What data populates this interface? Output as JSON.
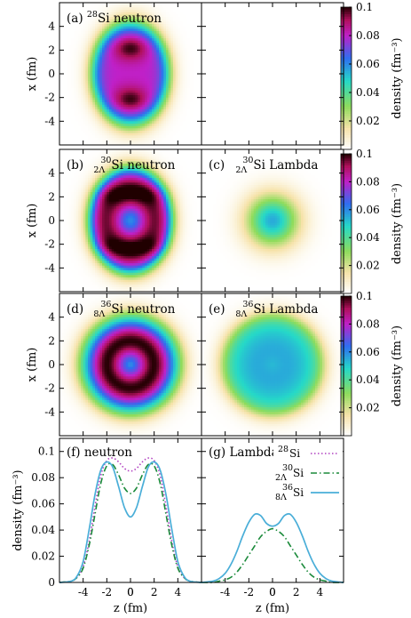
{
  "colorscale": {
    "stops": [
      [
        0.0,
        "#ffffff"
      ],
      [
        0.15,
        "#f6e2a8"
      ],
      [
        0.3,
        "#8fdc5c"
      ],
      [
        0.48,
        "#25d9c8"
      ],
      [
        0.64,
        "#2f6ef0"
      ],
      [
        0.8,
        "#c020c8"
      ],
      [
        0.91,
        "#b0105c"
      ],
      [
        1.0,
        "#200000"
      ]
    ],
    "ticks": [
      "0.02",
      "0.04",
      "0.06",
      "0.08",
      "0.1"
    ],
    "label": "density (fm⁻³)",
    "range": [
      0,
      0.1
    ]
  },
  "axes": {
    "x_label": "x (fm)",
    "z_label": "z (fm)",
    "density_label": "density (fm⁻³)",
    "map_ticks": [
      "4",
      "2",
      "0",
      "-2",
      "-4"
    ],
    "z_ticks": [
      "-4",
      "-2",
      "0",
      "2",
      "4"
    ],
    "dens_ticks": [
      "0.1",
      "0.08",
      "0.06",
      "0.04",
      "0.02",
      "0"
    ]
  },
  "panels": [
    {
      "id": "a",
      "tag": "(a) ",
      "mass": "28",
      "sub": "",
      "nuc": "Si",
      "species": " neutron"
    },
    {
      "id": "b",
      "tag": "(b) ",
      "mass": "30",
      "sub": "2Λ",
      "nuc": "Si",
      "species": " neutron"
    },
    {
      "id": "c",
      "tag": "(c) ",
      "mass": "30",
      "sub": "2Λ",
      "nuc": "Si",
      "species": " Lambda"
    },
    {
      "id": "d",
      "tag": "(d) ",
      "mass": "36",
      "sub": "8Λ",
      "nuc": "Si",
      "species": " neutron"
    },
    {
      "id": "e",
      "tag": "(e) ",
      "mass": "36",
      "sub": "8Λ",
      "nuc": "Si",
      "species": " Lambda"
    },
    {
      "id": "f",
      "tag": "(f) neutron",
      "mass": "",
      "sub": "",
      "nuc": "",
      "species": ""
    },
    {
      "id": "g",
      "tag": "(g) Lambda",
      "mass": "",
      "sub": "",
      "nuc": "",
      "species": ""
    }
  ],
  "legend": [
    {
      "mass": "28",
      "sub": "",
      "nuc": "Si",
      "color": "#b040c0",
      "dash": "dotted"
    },
    {
      "mass": "30",
      "sub": "2Λ",
      "nuc": "Si",
      "color": "#1a8a3a",
      "dash": "dashdot"
    },
    {
      "mass": "36",
      "sub": "8Λ",
      "nuc": "Si",
      "color": "#4aaed8",
      "dash": "solid"
    }
  ],
  "chart_data": [
    {
      "type": "heatmap",
      "title": "(a) 28Si neutron",
      "xlabel": "",
      "ylabel": "x (fm)",
      "xlim": [
        -6,
        6
      ],
      "ylim": [
        -6,
        6
      ],
      "clim": [
        0,
        0.1
      ],
      "shape": {
        "kind": "prolate",
        "peak_density": 0.1,
        "peak_x": [
          2.2,
          -2.2
        ],
        "radius_z": 3.2,
        "radius_x": 4.3
      }
    },
    {
      "type": "heatmap",
      "title": "(b) 30 2ΛSi neutron",
      "xlabel": "",
      "ylabel": "x (fm)",
      "xlim": [
        -6,
        6
      ],
      "ylim": [
        -6,
        6
      ],
      "clim": [
        0,
        0.1
      ],
      "shape": {
        "kind": "oblate-ring",
        "peak_density": 0.1,
        "center_density": 0.06,
        "radius_z": 3.4,
        "radius_x": 4.3
      }
    },
    {
      "type": "heatmap",
      "title": "(c) 30 2ΛSi Lambda",
      "xlabel": "",
      "ylabel": "",
      "xlim": [
        -6,
        6
      ],
      "ylim": [
        -6,
        6
      ],
      "clim": [
        0,
        0.1
      ],
      "shape": {
        "kind": "gaussian",
        "peak_density": 0.055,
        "radius": 2.2
      }
    },
    {
      "type": "heatmap",
      "title": "(d) 36 8ΛSi neutron",
      "xlabel": "",
      "ylabel": "x (fm)",
      "xlim": [
        -6,
        6
      ],
      "ylim": [
        -6,
        6
      ],
      "clim": [
        0,
        0.1
      ],
      "shape": {
        "kind": "spherical-bubble",
        "peak_density": 0.1,
        "center_density": 0.05,
        "ring_radius": 2.0,
        "outer_radius": 4.4
      }
    },
    {
      "type": "heatmap",
      "title": "(e) 36 8ΛSi Lambda",
      "xlabel": "",
      "ylabel": "",
      "xlim": [
        -6,
        6
      ],
      "ylim": [
        -6,
        6
      ],
      "clim": [
        0,
        0.1
      ],
      "shape": {
        "kind": "spherical-bubble",
        "peak_density": 0.055,
        "center_density": 0.05,
        "ring_radius": 1.2,
        "outer_radius": 4.2
      }
    },
    {
      "type": "line",
      "title": "(f) neutron",
      "xlabel": "z (fm)",
      "ylabel": "density (fm⁻³)",
      "xlim": [
        -6,
        6
      ],
      "ylim": [
        0,
        0.11
      ],
      "x": [
        -6,
        -5,
        -4.5,
        -4,
        -3.5,
        -3,
        -2.5,
        -2,
        -1.5,
        -1,
        -0.5,
        0,
        0.5,
        1,
        1.5,
        2,
        2.5,
        3,
        3.5,
        4,
        4.5,
        5,
        6
      ],
      "series": [
        {
          "name": "28Si",
          "values": [
            0,
            0.001,
            0.004,
            0.012,
            0.031,
            0.058,
            0.082,
            0.093,
            0.095,
            0.092,
            0.087,
            0.085,
            0.087,
            0.092,
            0.095,
            0.093,
            0.082,
            0.058,
            0.031,
            0.012,
            0.004,
            0.001,
            0
          ]
        },
        {
          "name": "30 2ΛSi",
          "values": [
            0,
            0.001,
            0.004,
            0.011,
            0.028,
            0.052,
            0.076,
            0.089,
            0.09,
            0.082,
            0.072,
            0.068,
            0.072,
            0.082,
            0.09,
            0.089,
            0.076,
            0.052,
            0.028,
            0.011,
            0.004,
            0.001,
            0
          ]
        },
        {
          "name": "36 8ΛSi",
          "values": [
            0,
            0.001,
            0.005,
            0.016,
            0.04,
            0.067,
            0.086,
            0.092,
            0.088,
            0.073,
            0.057,
            0.05,
            0.057,
            0.073,
            0.088,
            0.092,
            0.086,
            0.067,
            0.04,
            0.016,
            0.005,
            0.001,
            0
          ]
        }
      ]
    },
    {
      "type": "line",
      "title": "(g) Lambda",
      "xlabel": "z (fm)",
      "ylabel": "",
      "xlim": [
        -6,
        6
      ],
      "ylim": [
        0,
        0.11
      ],
      "x": [
        -6,
        -5,
        -4.5,
        -4,
        -3.5,
        -3,
        -2.5,
        -2,
        -1.5,
        -1,
        -0.5,
        0,
        0.5,
        1,
        1.5,
        2,
        2.5,
        3,
        3.5,
        4,
        4.5,
        5,
        6
      ],
      "series": [
        {
          "name": "30 2ΛSi",
          "values": [
            0,
            0.0,
            0.001,
            0.002,
            0.004,
            0.008,
            0.014,
            0.021,
            0.028,
            0.035,
            0.039,
            0.041,
            0.039,
            0.035,
            0.028,
            0.021,
            0.014,
            0.008,
            0.004,
            0.002,
            0.001,
            0.0,
            0
          ]
        },
        {
          "name": "36 8ΛSi",
          "values": [
            0,
            0.001,
            0.003,
            0.007,
            0.014,
            0.024,
            0.036,
            0.046,
            0.052,
            0.051,
            0.045,
            0.043,
            0.045,
            0.051,
            0.052,
            0.046,
            0.036,
            0.024,
            0.014,
            0.007,
            0.003,
            0.001,
            0
          ]
        }
      ]
    }
  ]
}
